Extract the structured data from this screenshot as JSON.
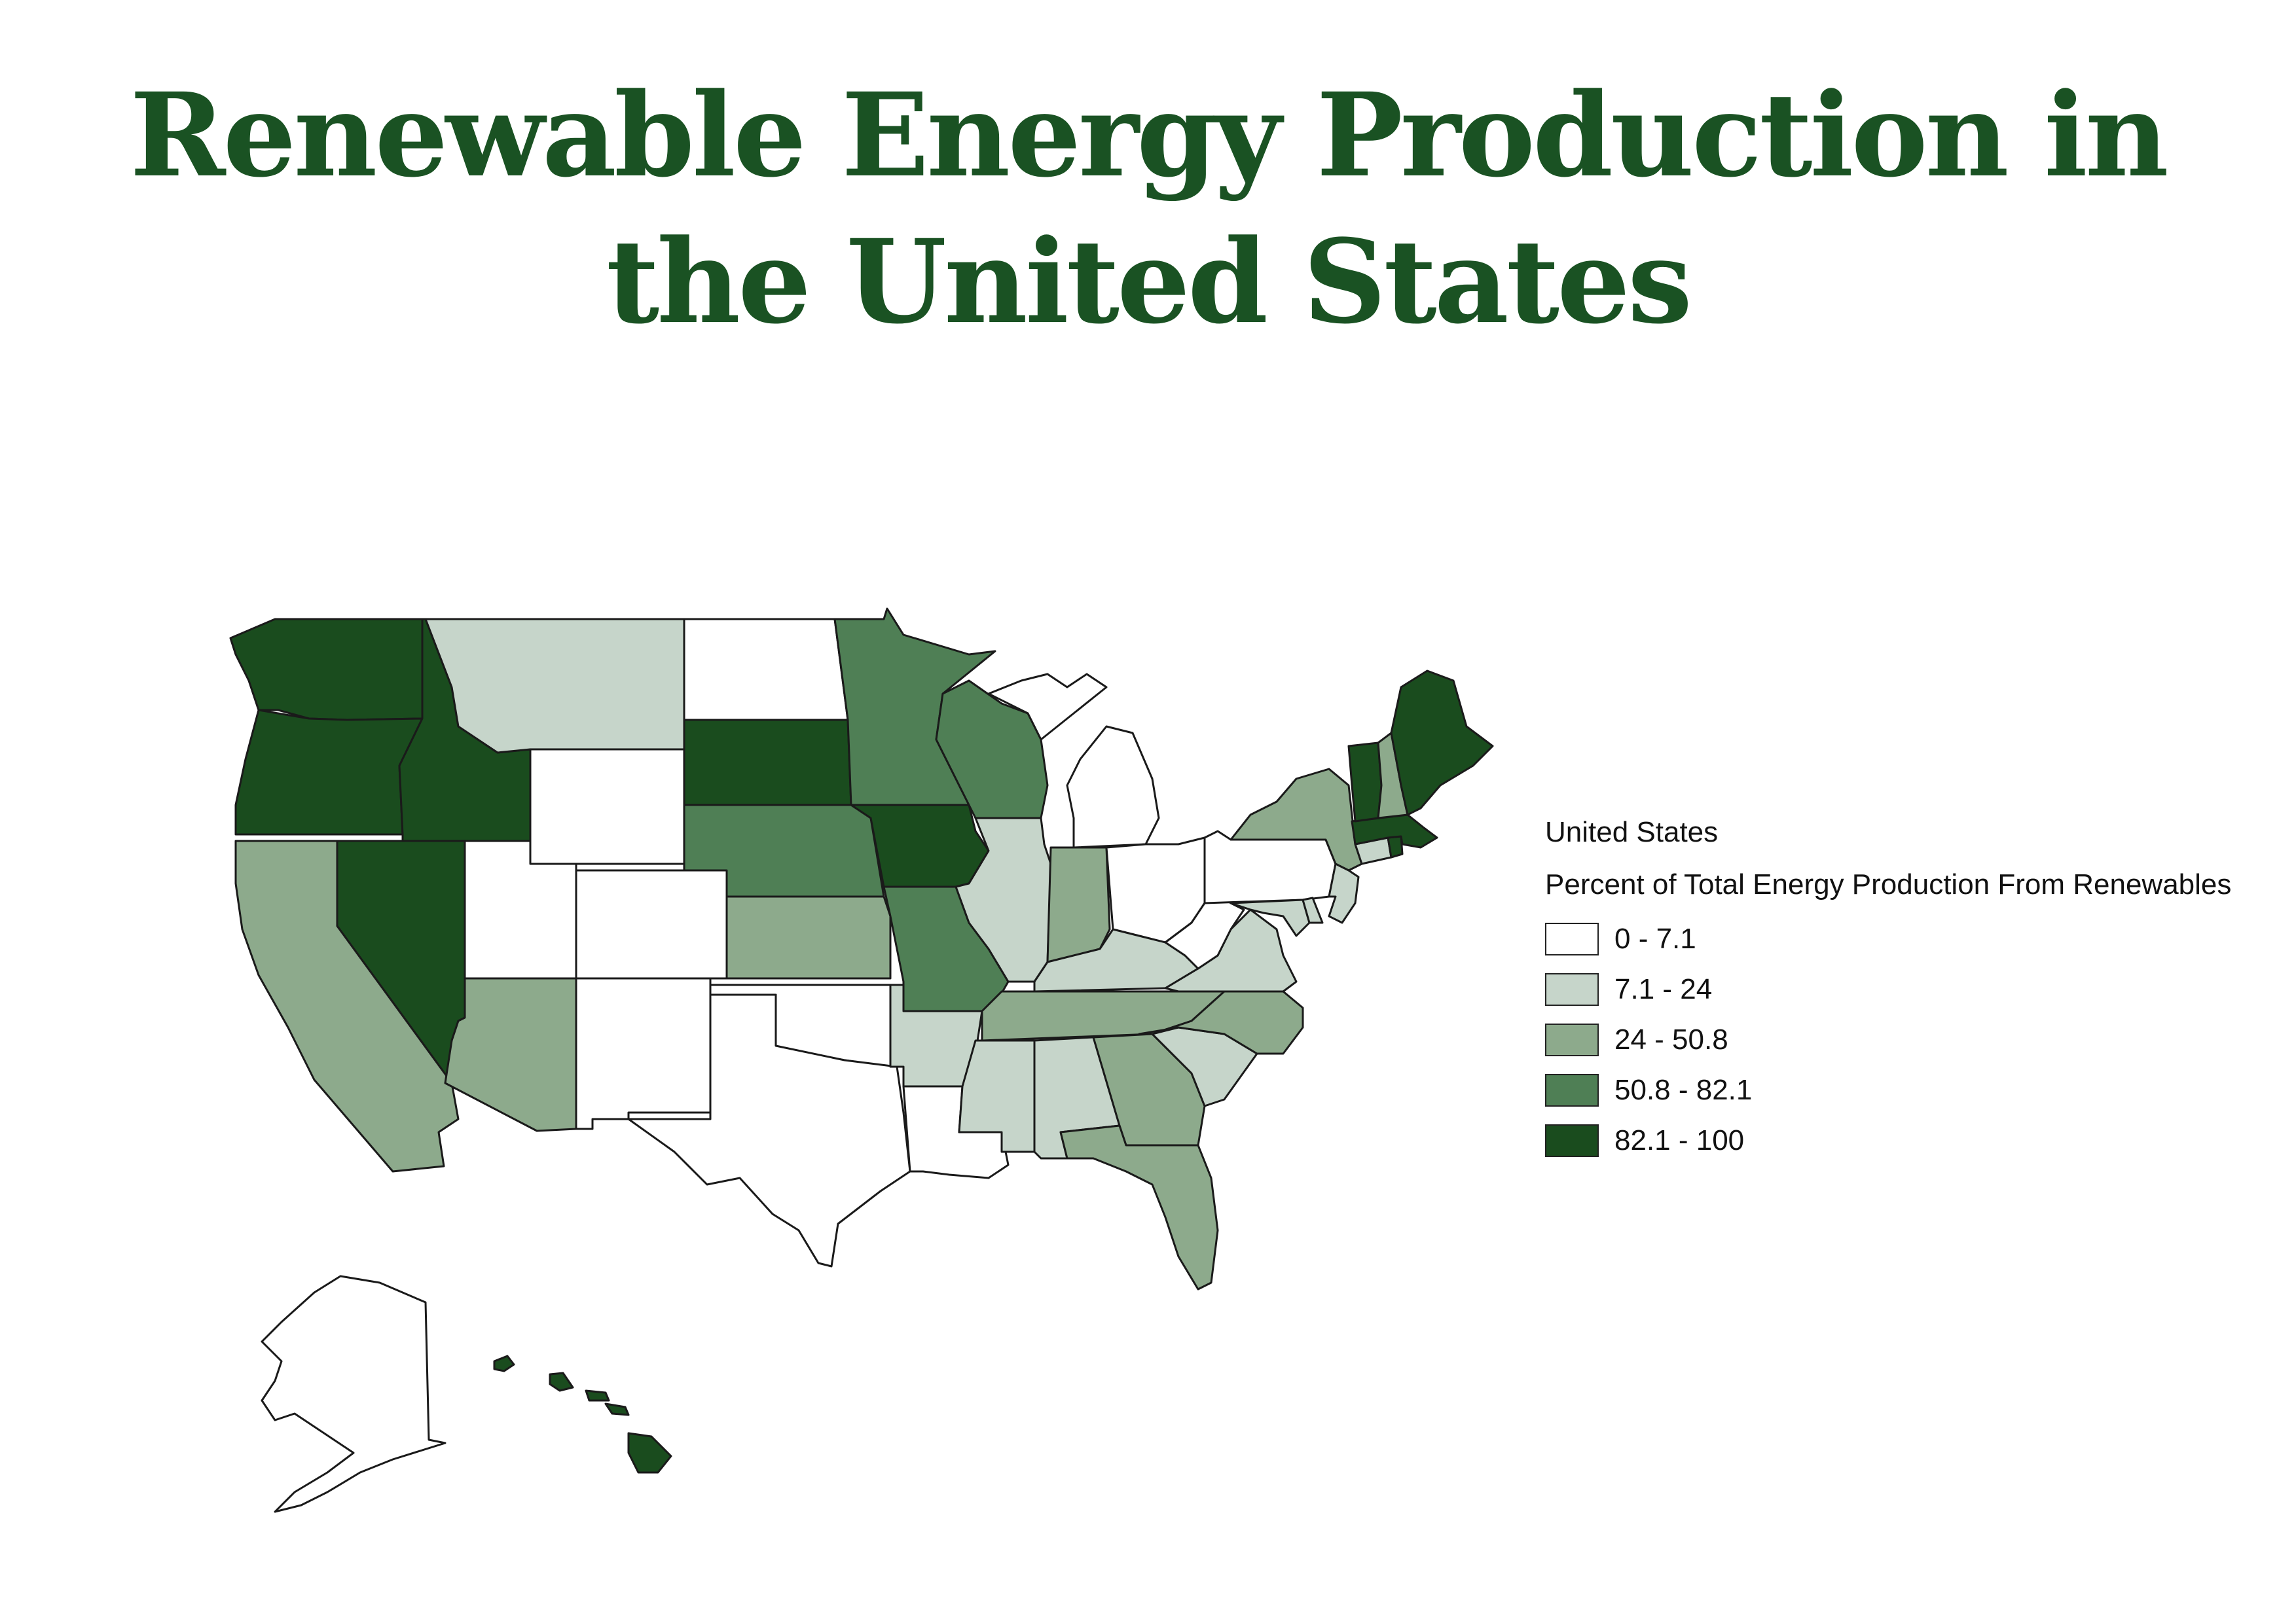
{
  "title": {
    "line1": "Renewable Energy Production in",
    "line2": "the United States"
  },
  "legend": {
    "title": "United States",
    "subtitle": "Percent of Total Energy Production From Renewables",
    "classes": [
      {
        "label": "0 - 7.1",
        "color": "#ffffff"
      },
      {
        "label": "7.1 - 24",
        "color": "#c6d5ca"
      },
      {
        "label": "24 - 50.8",
        "color": "#8daa8c"
      },
      {
        "label": "50.8 - 82.1",
        "color": "#4f7f55"
      },
      {
        "label": "82.1 - 100",
        "color": "#1a4c1e"
      }
    ]
  },
  "states": [
    {
      "name": "Washington",
      "class": 4
    },
    {
      "name": "Oregon",
      "class": 4
    },
    {
      "name": "Idaho",
      "class": 4
    },
    {
      "name": "Nevada",
      "class": 4
    },
    {
      "name": "California",
      "class": 2
    },
    {
      "name": "Montana",
      "class": 1
    },
    {
      "name": "Wyoming",
      "class": 0
    },
    {
      "name": "Utah",
      "class": 0
    },
    {
      "name": "Colorado",
      "class": 0
    },
    {
      "name": "Arizona",
      "class": 2
    },
    {
      "name": "New Mexico",
      "class": 0
    },
    {
      "name": "North Dakota",
      "class": 0
    },
    {
      "name": "South Dakota",
      "class": 4
    },
    {
      "name": "Nebraska",
      "class": 3
    },
    {
      "name": "Kansas",
      "class": 2
    },
    {
      "name": "Oklahoma",
      "class": 0
    },
    {
      "name": "Texas",
      "class": 0
    },
    {
      "name": "Minnesota",
      "class": 3
    },
    {
      "name": "Iowa",
      "class": 4
    },
    {
      "name": "Missouri",
      "class": 3
    },
    {
      "name": "Arkansas",
      "class": 1
    },
    {
      "name": "Louisiana",
      "class": 0
    },
    {
      "name": "Wisconsin",
      "class": 3
    },
    {
      "name": "Illinois",
      "class": 1
    },
    {
      "name": "Michigan",
      "class": 0
    },
    {
      "name": "Indiana",
      "class": 2
    },
    {
      "name": "Ohio",
      "class": 0
    },
    {
      "name": "Kentucky",
      "class": 1
    },
    {
      "name": "Tennessee",
      "class": 2
    },
    {
      "name": "Mississippi",
      "class": 1
    },
    {
      "name": "Alabama",
      "class": 1
    },
    {
      "name": "Georgia",
      "class": 2
    },
    {
      "name": "Florida",
      "class": 2
    },
    {
      "name": "South Carolina",
      "class": 1
    },
    {
      "name": "North Carolina",
      "class": 2
    },
    {
      "name": "Virginia",
      "class": 1
    },
    {
      "name": "West Virginia",
      "class": 0
    },
    {
      "name": "Pennsylvania",
      "class": 0
    },
    {
      "name": "New York",
      "class": 2
    },
    {
      "name": "New Jersey",
      "class": 1
    },
    {
      "name": "Maryland",
      "class": 1
    },
    {
      "name": "Delaware",
      "class": 1
    },
    {
      "name": "Connecticut",
      "class": 1
    },
    {
      "name": "Rhode Island",
      "class": 4
    },
    {
      "name": "Massachusetts",
      "class": 4
    },
    {
      "name": "Vermont",
      "class": 4
    },
    {
      "name": "New Hampshire",
      "class": 2
    },
    {
      "name": "Maine",
      "class": 4
    },
    {
      "name": "Alaska",
      "class": 0
    },
    {
      "name": "Hawaii",
      "class": 4
    }
  ]
}
